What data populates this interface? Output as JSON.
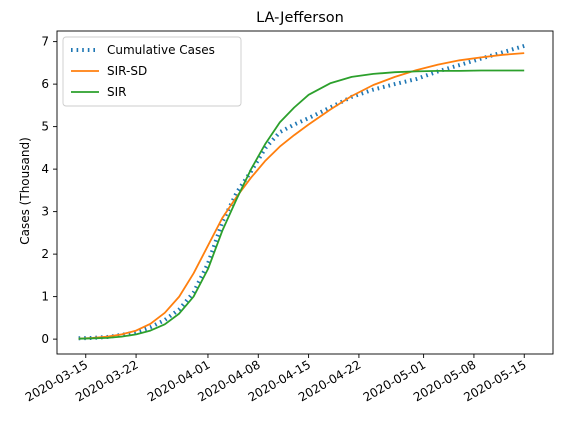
{
  "chart_data": {
    "type": "line",
    "title": "LA-Jefferson",
    "xlabel": "",
    "ylabel": "Cases (Thousand)",
    "x_ticks": [
      "2020-03-15",
      "2020-03-22",
      "2020-04-01",
      "2020-04-08",
      "2020-04-15",
      "2020-04-22",
      "2020-05-01",
      "2020-05-08",
      "2020-05-15"
    ],
    "y_ticks": [
      0,
      1,
      2,
      3,
      4,
      5,
      6,
      7
    ],
    "xlim": [
      "2020-03-11",
      "2020-05-19"
    ],
    "ylim": [
      -0.35,
      7.25
    ],
    "legend_position": "upper-left",
    "grid": false,
    "series": [
      {
        "name": "Cumulative Cases",
        "color": "#1f77b4",
        "style": "dotted",
        "x": [
          "2020-03-14",
          "2020-03-16",
          "2020-03-18",
          "2020-03-20",
          "2020-03-22",
          "2020-03-24",
          "2020-03-26",
          "2020-03-28",
          "2020-03-30",
          "2020-04-01",
          "2020-04-03",
          "2020-04-05",
          "2020-04-07",
          "2020-04-09",
          "2020-04-11",
          "2020-04-13",
          "2020-04-15",
          "2020-04-18",
          "2020-04-21",
          "2020-04-24",
          "2020-04-27",
          "2020-04-30",
          "2020-05-03",
          "2020-05-06",
          "2020-05-09",
          "2020-05-12",
          "2020-05-15"
        ],
        "y": [
          0.02,
          0.03,
          0.05,
          0.1,
          0.16,
          0.28,
          0.45,
          0.7,
          1.1,
          1.78,
          2.75,
          3.45,
          3.95,
          4.5,
          4.87,
          5.05,
          5.2,
          5.45,
          5.7,
          5.87,
          6.0,
          6.12,
          6.3,
          6.45,
          6.6,
          6.75,
          6.9
        ]
      },
      {
        "name": "SIR-SD",
        "color": "#ff7f0e",
        "style": "solid",
        "x": [
          "2020-03-14",
          "2020-03-16",
          "2020-03-18",
          "2020-03-20",
          "2020-03-22",
          "2020-03-24",
          "2020-03-26",
          "2020-03-28",
          "2020-03-30",
          "2020-04-01",
          "2020-04-03",
          "2020-04-05",
          "2020-04-07",
          "2020-04-09",
          "2020-04-11",
          "2020-04-13",
          "2020-04-15",
          "2020-04-18",
          "2020-04-21",
          "2020-04-24",
          "2020-04-27",
          "2020-04-30",
          "2020-05-03",
          "2020-05-06",
          "2020-05-09",
          "2020-05-12",
          "2020-05-15"
        ],
        "y": [
          0.01,
          0.03,
          0.06,
          0.11,
          0.2,
          0.36,
          0.62,
          1.0,
          1.55,
          2.2,
          2.85,
          3.35,
          3.8,
          4.2,
          4.53,
          4.8,
          5.05,
          5.4,
          5.72,
          5.98,
          6.17,
          6.33,
          6.46,
          6.56,
          6.63,
          6.69,
          6.73
        ]
      },
      {
        "name": "SIR",
        "color": "#2ca02c",
        "style": "solid",
        "x": [
          "2020-03-14",
          "2020-03-16",
          "2020-03-18",
          "2020-03-20",
          "2020-03-22",
          "2020-03-24",
          "2020-03-26",
          "2020-03-28",
          "2020-03-30",
          "2020-04-01",
          "2020-04-03",
          "2020-04-05",
          "2020-04-07",
          "2020-04-09",
          "2020-04-11",
          "2020-04-13",
          "2020-04-15",
          "2020-04-18",
          "2020-04-21",
          "2020-04-24",
          "2020-04-27",
          "2020-04-30",
          "2020-05-03",
          "2020-05-06",
          "2020-05-09",
          "2020-05-12",
          "2020-05-15"
        ],
        "y": [
          0.01,
          0.02,
          0.03,
          0.06,
          0.11,
          0.2,
          0.35,
          0.6,
          1.0,
          1.65,
          2.55,
          3.3,
          4.0,
          4.6,
          5.1,
          5.45,
          5.75,
          6.02,
          6.17,
          6.24,
          6.28,
          6.3,
          6.31,
          6.31,
          6.32,
          6.32,
          6.32
        ]
      }
    ]
  }
}
